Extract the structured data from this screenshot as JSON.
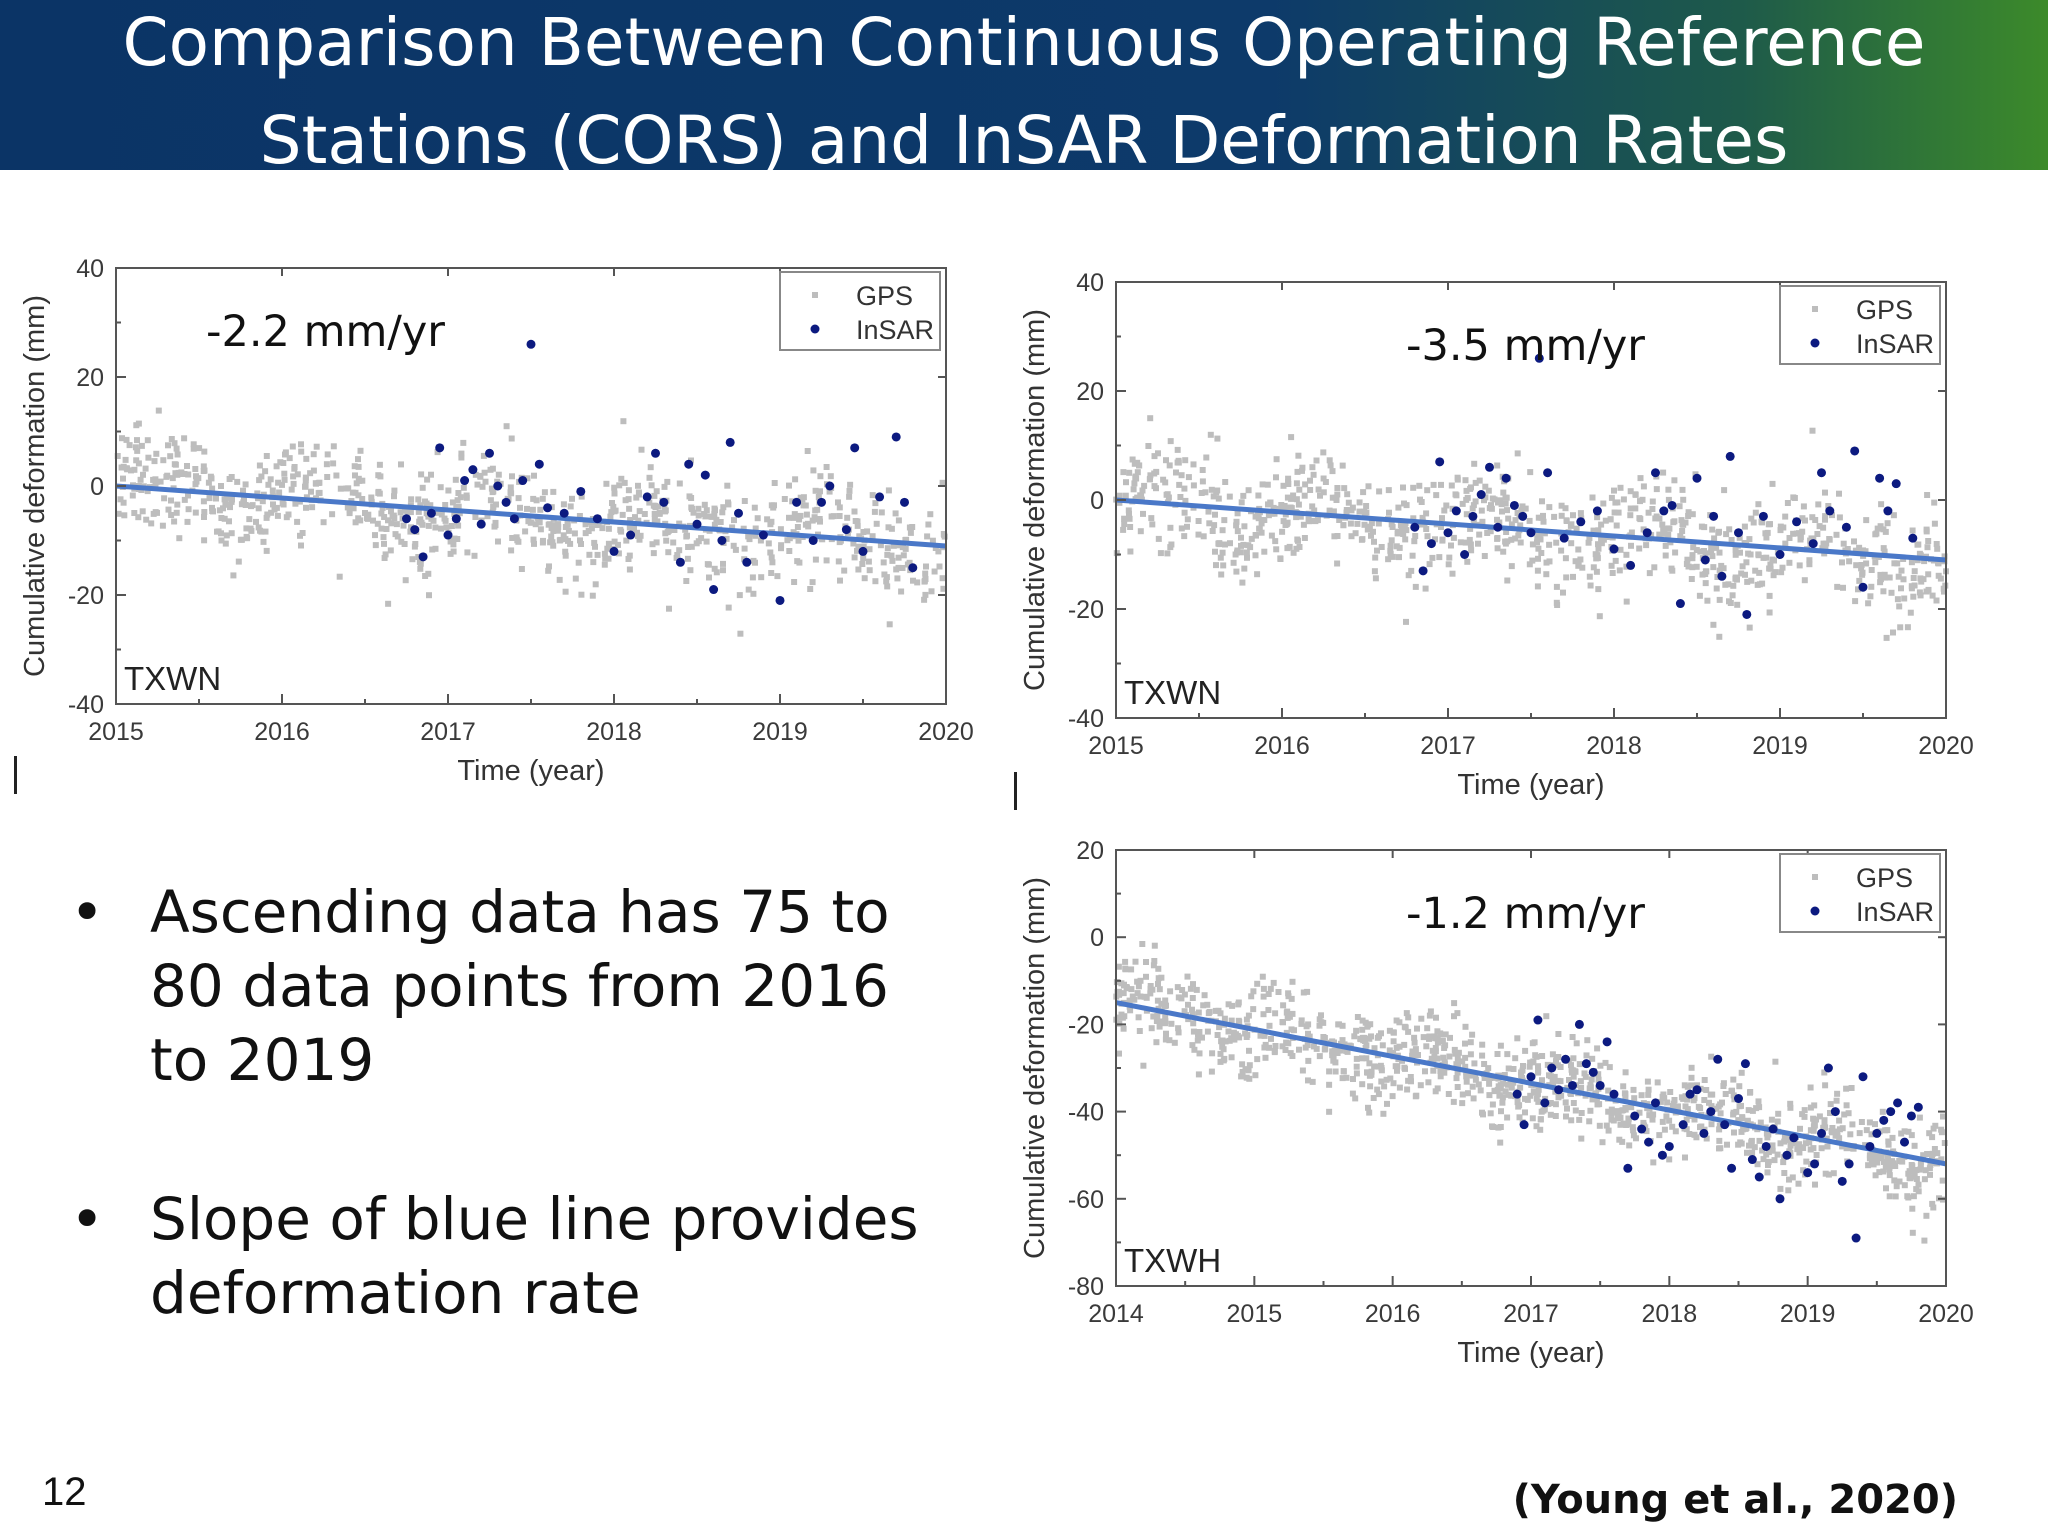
{
  "slide": {
    "title_lines": [
      "Comparison Between Continuous Operating Reference",
      "Stations (CORS) and InSAR Deformation Rates"
    ],
    "bullets": [
      "Ascending data has 75 to 80 data points from 2016 to 2019",
      "Slope of blue line provides deformation rate"
    ],
    "bullet_symbol": "•",
    "page_number": "12",
    "citation": "(Young et al., 2020)"
  },
  "colors": {
    "header_blue": "#0b3466",
    "header_green": "#3c8a2a",
    "gps": "#bdbdbd",
    "insar": "#0c1a80",
    "trend": "#4a78c8"
  },
  "chart_data": [
    {
      "type": "scatter",
      "station": "TXWN",
      "rate_label": "-2.2 mm/yr",
      "xlabel": "Time (year)",
      "ylabel": "Cumulative deformation (mm)",
      "xlim": [
        2015,
        2020
      ],
      "ylim": [
        -40,
        40
      ],
      "xticks": [
        2015,
        2016,
        2017,
        2018,
        2019,
        2020
      ],
      "yticks": [
        -40,
        -20,
        0,
        20,
        40
      ],
      "legend": [
        "GPS",
        "InSAR"
      ],
      "legend_position": "top-right",
      "trend_line": {
        "x": [
          2015,
          2020
        ],
        "y": [
          0,
          -11
        ]
      },
      "gps_cloud": {
        "x_range": [
          2015,
          2020
        ],
        "count": 900,
        "spread_mm": 5
      },
      "series": [
        {
          "name": "InSAR",
          "x": [
            2016.75,
            2016.8,
            2016.85,
            2016.9,
            2016.95,
            2017.0,
            2017.05,
            2017.1,
            2017.15,
            2017.2,
            2017.25,
            2017.3,
            2017.35,
            2017.4,
            2017.45,
            2017.5,
            2017.55,
            2017.6,
            2017.7,
            2017.8,
            2017.9,
            2018.0,
            2018.1,
            2018.2,
            2018.25,
            2018.3,
            2018.4,
            2018.45,
            2018.5,
            2018.55,
            2018.6,
            2018.65,
            2018.7,
            2018.75,
            2018.8,
            2018.9,
            2019.0,
            2019.1,
            2019.2,
            2019.25,
            2019.3,
            2019.4,
            2019.45,
            2019.5,
            2019.6,
            2019.7,
            2019.75,
            2019.8
          ],
          "y": [
            -6,
            -8,
            -13,
            -5,
            7,
            -9,
            -6,
            1,
            3,
            -7,
            6,
            0,
            -3,
            -6,
            1,
            26,
            4,
            -4,
            -5,
            -1,
            -6,
            -12,
            -9,
            -2,
            6,
            -3,
            -14,
            4,
            -7,
            2,
            -19,
            -10,
            8,
            -5,
            -14,
            -9,
            -21,
            -3,
            -10,
            -3,
            0,
            -8,
            7,
            -12,
            -2,
            9,
            -3,
            -15
          ]
        }
      ]
    },
    {
      "type": "scatter",
      "station": "TXWN",
      "rate_label": "-3.5 mm/yr",
      "xlabel": "Time (year)",
      "ylabel": "Cumulative deformation (mm)",
      "xlim": [
        2015,
        2020
      ],
      "ylim": [
        -40,
        40
      ],
      "xticks": [
        2015,
        2016,
        2017,
        2018,
        2019,
        2020
      ],
      "yticks": [
        -40,
        -20,
        0,
        20,
        40
      ],
      "legend": [
        "GPS",
        "InSAR"
      ],
      "legend_position": "top-right",
      "trend_line": {
        "x": [
          2015,
          2020
        ],
        "y": [
          0,
          -11
        ]
      },
      "gps_cloud": {
        "x_range": [
          2015,
          2020
        ],
        "count": 900,
        "spread_mm": 5
      },
      "series": [
        {
          "name": "InSAR",
          "x": [
            2016.8,
            2016.85,
            2016.9,
            2016.95,
            2017.0,
            2017.05,
            2017.1,
            2017.15,
            2017.2,
            2017.25,
            2017.3,
            2017.35,
            2017.4,
            2017.45,
            2017.5,
            2017.55,
            2017.6,
            2017.7,
            2017.8,
            2017.9,
            2018.0,
            2018.1,
            2018.2,
            2018.25,
            2018.3,
            2018.35,
            2018.4,
            2018.5,
            2018.55,
            2018.6,
            2018.65,
            2018.7,
            2018.75,
            2018.8,
            2018.9,
            2019.0,
            2019.1,
            2019.2,
            2019.25,
            2019.3,
            2019.4,
            2019.45,
            2019.5,
            2019.6,
            2019.65,
            2019.7,
            2019.8
          ],
          "y": [
            -5,
            -13,
            -8,
            7,
            -6,
            -2,
            -10,
            -3,
            1,
            6,
            -5,
            4,
            -1,
            -3,
            -6,
            26,
            5,
            -7,
            -4,
            -2,
            -9,
            -12,
            -6,
            5,
            -2,
            -1,
            -19,
            4,
            -11,
            -3,
            -14,
            8,
            -6,
            -21,
            -3,
            -10,
            -4,
            -8,
            5,
            -2,
            -5,
            9,
            -16,
            4,
            -2,
            3,
            -7
          ]
        }
      ]
    },
    {
      "type": "scatter",
      "station": "TXWH",
      "rate_label": "-1.2 mm/yr",
      "xlabel": "Time (year)",
      "ylabel": "Cumulative deformation (mm)",
      "xlim": [
        2014,
        2020
      ],
      "ylim": [
        -80,
        20
      ],
      "xticks": [
        2014,
        2015,
        2016,
        2017,
        2018,
        2019,
        2020
      ],
      "yticks": [
        -80,
        -60,
        -40,
        -20,
        0,
        20
      ],
      "legend": [
        "GPS",
        "InSAR"
      ],
      "legend_position": "top-right",
      "trend_line": {
        "x": [
          2014,
          2020
        ],
        "y": [
          -15,
          -52
        ]
      },
      "gps_cloud": {
        "x_range": [
          2014,
          2020
        ],
        "count": 1100,
        "spread_mm": 5
      },
      "series": [
        {
          "name": "InSAR",
          "x": [
            2016.9,
            2016.95,
            2017.0,
            2017.05,
            2017.1,
            2017.15,
            2017.2,
            2017.25,
            2017.3,
            2017.35,
            2017.4,
            2017.45,
            2017.5,
            2017.55,
            2017.6,
            2017.7,
            2017.75,
            2017.8,
            2017.85,
            2017.9,
            2017.95,
            2018.0,
            2018.1,
            2018.15,
            2018.2,
            2018.25,
            2018.3,
            2018.35,
            2018.4,
            2018.45,
            2018.5,
            2018.55,
            2018.6,
            2018.65,
            2018.7,
            2018.75,
            2018.8,
            2018.85,
            2018.9,
            2019.0,
            2019.05,
            2019.1,
            2019.15,
            2019.2,
            2019.25,
            2019.3,
            2019.35,
            2019.4,
            2019.45,
            2019.5,
            2019.55,
            2019.6,
            2019.65,
            2019.7,
            2019.75,
            2019.8
          ],
          "y": [
            -36,
            -43,
            -32,
            -19,
            -38,
            -30,
            -35,
            -28,
            -34,
            -20,
            -29,
            -31,
            -34,
            -24,
            -36,
            -53,
            -41,
            -44,
            -47,
            -38,
            -50,
            -48,
            -43,
            -36,
            -35,
            -45,
            -40,
            -28,
            -43,
            -53,
            -37,
            -29,
            -51,
            -55,
            -48,
            -44,
            -60,
            -50,
            -46,
            -54,
            -52,
            -45,
            -30,
            -40,
            -56,
            -52,
            -69,
            -32,
            -48,
            -45,
            -42,
            -40,
            -38,
            -47,
            -41,
            -39
          ]
        }
      ]
    }
  ]
}
